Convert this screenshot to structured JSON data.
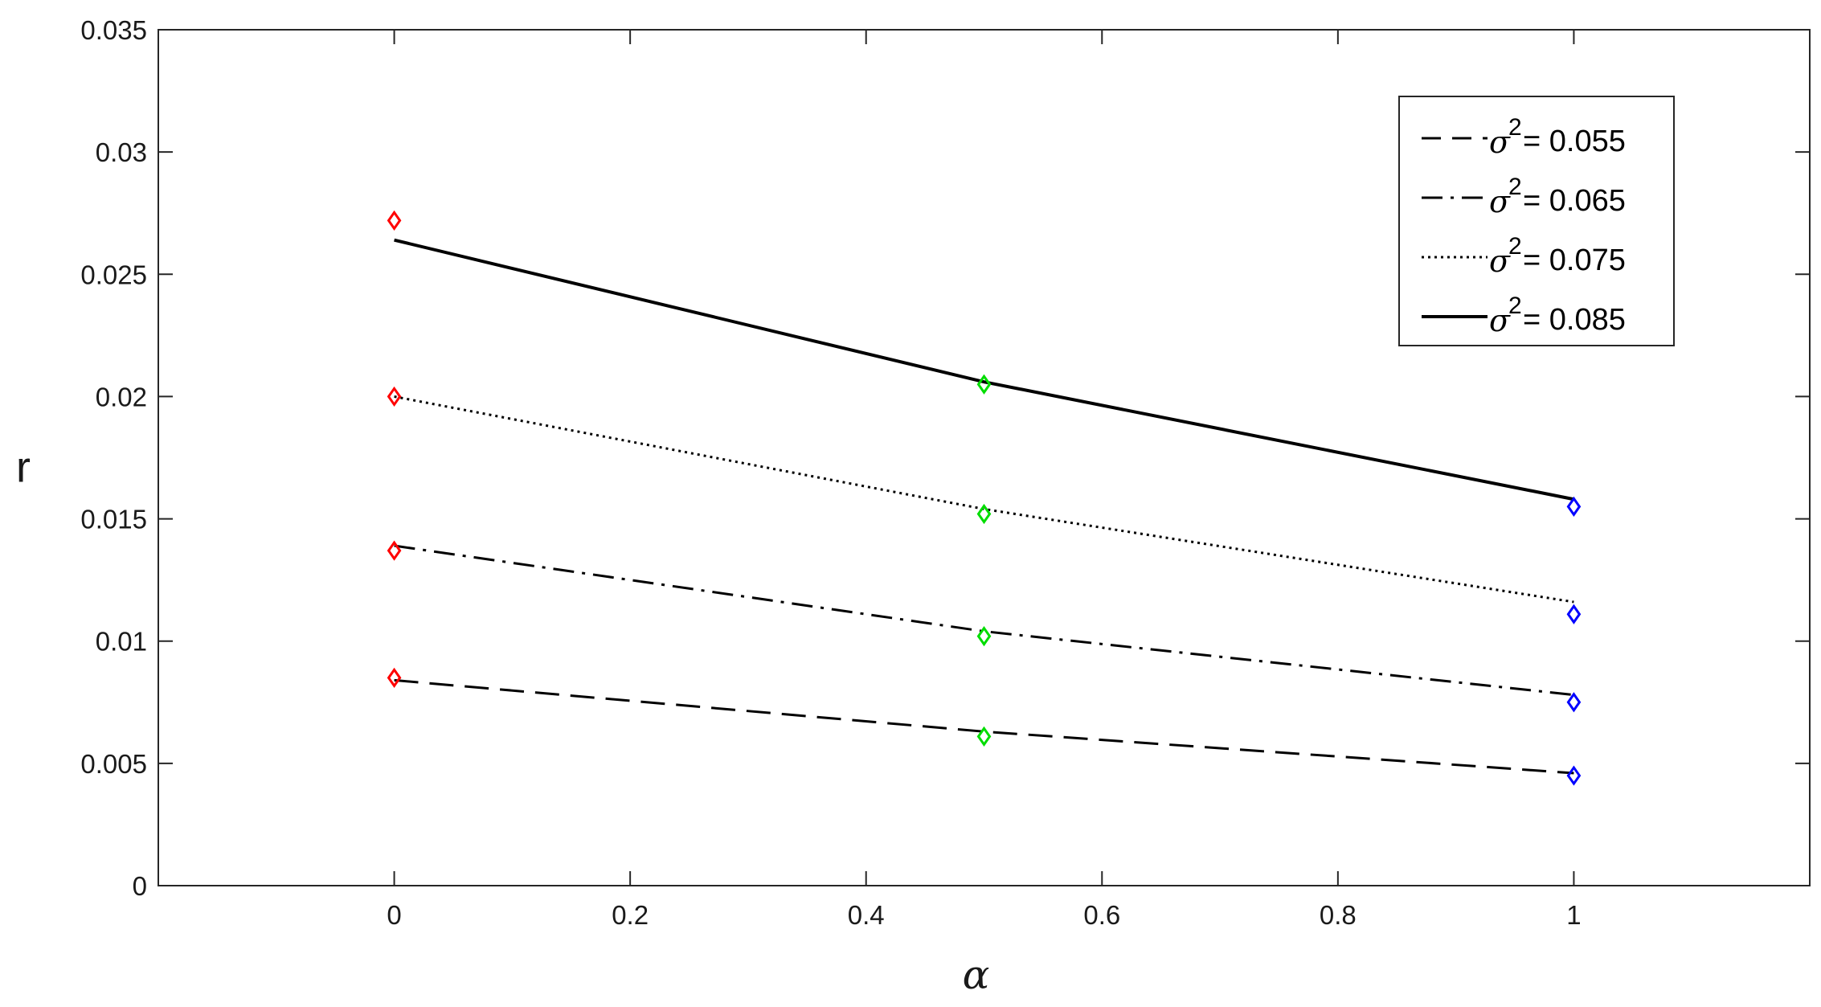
{
  "chart_data": {
    "type": "line",
    "title": "",
    "xlabel": "α",
    "ylabel": "r",
    "xlim": [
      -0.2,
      1.2
    ],
    "ylim": [
      0,
      0.035
    ],
    "x_ticks": [
      "0",
      "0.2",
      "0.4",
      "0.6",
      "0.8",
      "1"
    ],
    "y_ticks": [
      "0",
      "0.005",
      "0.01",
      "0.015",
      "0.02",
      "0.025",
      "0.03",
      "0.035"
    ],
    "grid": false,
    "legend_position": "top-right",
    "x": [
      0,
      0.5,
      1
    ],
    "series": [
      {
        "name": "σ² = 0.055",
        "legend_symbol": "σ",
        "legend_sup": "2",
        "legend_value": " = 0.055",
        "style": "dashed",
        "values": [
          0.0084,
          0.0063,
          0.0046
        ]
      },
      {
        "name": "σ² = 0.065",
        "legend_symbol": "σ",
        "legend_sup": "2",
        "legend_value": " = 0.065",
        "style": "dashdot",
        "values": [
          0.0139,
          0.0104,
          0.0078
        ]
      },
      {
        "name": "σ² = 0.075",
        "legend_symbol": "σ",
        "legend_sup": "2",
        "legend_value": " = 0.075",
        "style": "dotted",
        "values": [
          0.02,
          0.0154,
          0.0116
        ]
      },
      {
        "name": "σ² = 0.085",
        "legend_symbol": "σ",
        "legend_sup": "2",
        "legend_value": " = 0.085",
        "style": "solid",
        "values": [
          0.0264,
          0.0206,
          0.0158
        ]
      }
    ],
    "markers": {
      "shape": "diamond",
      "colors": [
        "#ff0000",
        "#00dd00",
        "#0000ff"
      ],
      "points": [
        {
          "x": 0,
          "y": 0.0085,
          "color": "#ff0000"
        },
        {
          "x": 0,
          "y": 0.0137,
          "color": "#ff0000"
        },
        {
          "x": 0,
          "y": 0.02,
          "color": "#ff0000"
        },
        {
          "x": 0,
          "y": 0.0272,
          "color": "#ff0000"
        },
        {
          "x": 0.5,
          "y": 0.0061,
          "color": "#00dd00"
        },
        {
          "x": 0.5,
          "y": 0.0102,
          "color": "#00dd00"
        },
        {
          "x": 0.5,
          "y": 0.0152,
          "color": "#00dd00"
        },
        {
          "x": 0.5,
          "y": 0.0205,
          "color": "#00dd00"
        },
        {
          "x": 1,
          "y": 0.0045,
          "color": "#0000ff"
        },
        {
          "x": 1,
          "y": 0.0075,
          "color": "#0000ff"
        },
        {
          "x": 1,
          "y": 0.0111,
          "color": "#0000ff"
        },
        {
          "x": 1,
          "y": 0.0155,
          "color": "#0000ff"
        }
      ]
    }
  }
}
